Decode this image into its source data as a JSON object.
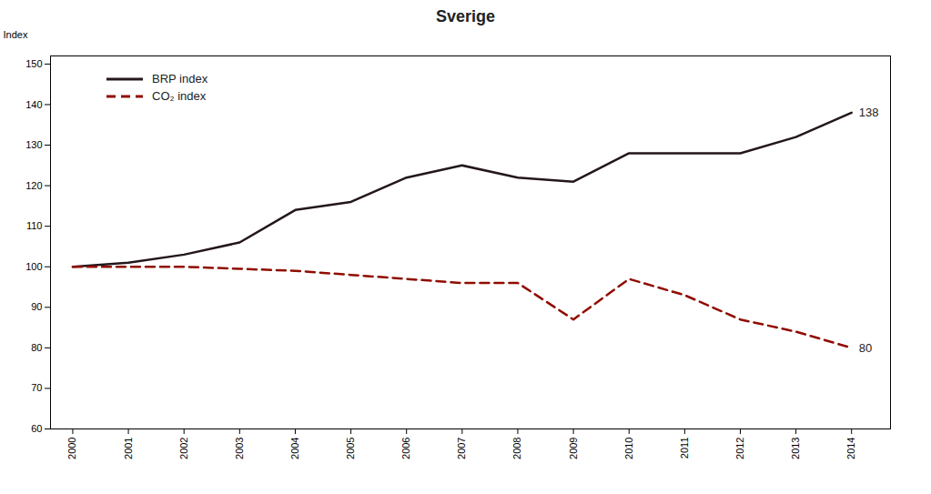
{
  "chart_data": {
    "type": "line",
    "title": "Sverige",
    "y_label": "Index",
    "x": [
      2000,
      2001,
      2002,
      2003,
      2004,
      2005,
      2006,
      2007,
      2008,
      2009,
      2010,
      2011,
      2012,
      2013,
      2014
    ],
    "series": [
      {
        "name": "BRP index",
        "values": [
          100,
          101,
          103,
          106,
          114,
          116,
          122,
          125,
          122,
          121,
          128,
          128,
          128,
          132,
          138
        ],
        "line_style": "solid"
      },
      {
        "name": "CO₂ index",
        "values": [
          100,
          100,
          100,
          99.5,
          99,
          98,
          97,
          96,
          96,
          87,
          97,
          93,
          87,
          84,
          80
        ],
        "line_style": "dashed"
      }
    ],
    "xlim": [
      1999.6,
      2014.7
    ],
    "xticks": [
      2000,
      2001,
      2002,
      2003,
      2004,
      2005,
      2006,
      2007,
      2008,
      2009,
      2010,
      2011,
      2012,
      2013,
      2014
    ],
    "ylim": [
      60,
      152
    ],
    "yticks": [
      60,
      70,
      80,
      90,
      100,
      110,
      120,
      130,
      140,
      150
    ],
    "grid": false,
    "legend": "upper left",
    "annotations": [
      {
        "text": "138",
        "x": 2014,
        "y": 138
      },
      {
        "text": "80",
        "x": 2014,
        "y": 80
      }
    ]
  }
}
